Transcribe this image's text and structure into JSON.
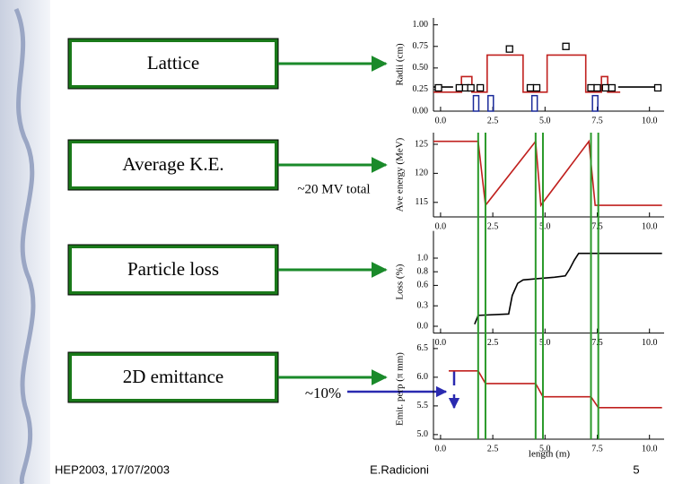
{
  "boxes": [
    "Lattice",
    "Average K.E.",
    "Particle loss",
    "2D emittance"
  ],
  "annotations": {
    "energy": "~20 MV total",
    "emittance": "~10%"
  },
  "footer": {
    "left": "HEP2003, 17/07/2003",
    "center": "E.Radicioni",
    "page": "5"
  },
  "xlabel": "length (m)",
  "marker_lines": [
    1.8,
    2.15,
    4.55,
    4.9,
    7.2,
    7.55
  ],
  "chart_data": [
    {
      "type": "line",
      "ylabel": "Radii (cm)",
      "xlim": [
        -0.34,
        10.7
      ],
      "ylim": [
        0,
        1.08
      ],
      "xticks": [
        {
          "value": 0,
          "label": "0.0"
        },
        2.5,
        {
          "value": 5,
          "label": "5.0"
        },
        7.5,
        {
          "value": 10,
          "label": "10.0"
        }
      ],
      "yticks": [
        {
          "value": 0,
          "label": "0.00"
        },
        0.25,
        {
          "value": 0.5,
          "label": "0.50"
        },
        0.75,
        {
          "value": 1,
          "label": "1.00"
        }
      ],
      "series": [
        {
          "color": "#c0201e",
          "x": [
            -0.34,
            1.0,
            1.0,
            1.5,
            1.5,
            2.23,
            2.23,
            3.95,
            3.95,
            5.1,
            5.1,
            6.95,
            6.95,
            7.7,
            7.7,
            8.0,
            8.0,
            8.6
          ],
          "values": [
            0.22,
            0.22,
            0.4,
            0.4,
            0.22,
            0.22,
            0.65,
            0.65,
            0.22,
            0.22,
            0.65,
            0.65,
            0.22,
            0.22,
            0.4,
            0.4,
            0.22,
            0.22
          ]
        },
        {
          "type": "bar",
          "color": "#1a2a9a",
          "x": [
            1.7,
            2.4,
            4.5,
            7.4
          ],
          "values": [
            0.18,
            0.18,
            0.18,
            0.18
          ]
        },
        {
          "color": "#000000",
          "x": [
            -0.34,
            0.6,
            null,
            8.5,
            10.4
          ],
          "values": [
            0.28,
            0.28,
            null,
            0.28,
            0.28
          ]
        },
        {
          "type": "scatter",
          "color": "#000000",
          "x": [
            -0.1,
            0.9,
            1.2,
            1.45,
            1.9,
            3.3,
            4.3,
            4.6,
            6.0,
            7.2,
            7.5,
            7.9,
            8.2,
            10.4
          ],
          "values": [
            0.27,
            0.27,
            0.27,
            0.27,
            0.27,
            0.72,
            0.27,
            0.27,
            0.75,
            0.27,
            0.27,
            0.27,
            0.27,
            0.27
          ]
        }
      ]
    },
    {
      "type": "line",
      "ylabel": "Ave energy (MeV)",
      "xlim": [
        -0.34,
        10.7
      ],
      "ylim": [
        112.5,
        127
      ],
      "xticks": [
        {
          "value": 0,
          "label": "0.0"
        },
        2.5,
        {
          "value": 5,
          "label": "5.0"
        },
        7.5,
        {
          "value": 10,
          "label": "10.0"
        }
      ],
      "yticks": [
        115,
        120,
        125
      ],
      "series": [
        {
          "color": "#c0201e",
          "x": [
            -0.34,
            1.8,
            2.15,
            4.55,
            4.8,
            7.1,
            7.4,
            10.6
          ],
          "values": [
            125.5,
            125.5,
            114.5,
            125.5,
            114.5,
            125.5,
            114.5,
            114.5
          ]
        }
      ]
    },
    {
      "type": "line",
      "ylabel": "Loss (%)",
      "xlim": [
        -0.34,
        10.7
      ],
      "ylim": [
        -0.1,
        1.4
      ],
      "xticks": [
        {
          "value": 0,
          "label": "0.0"
        },
        2.5,
        {
          "value": 5,
          "label": "5.0"
        },
        7.5,
        {
          "value": 10,
          "label": "10.0"
        }
      ],
      "yticks": [
        {
          "value": 0,
          "label": "0.0"
        },
        0.3,
        0.6,
        0.8,
        {
          "value": 1,
          "label": "1.0"
        }
      ],
      "series": [
        {
          "color": "#000000",
          "x": [
            1.63,
            1.8,
            3.26,
            3.43,
            3.69,
            3.95,
            4.68,
            5.45,
            5.97,
            6.18,
            6.4,
            6.61,
            10.6
          ],
          "values": [
            0.03,
            0.16,
            0.18,
            0.45,
            0.63,
            0.68,
            0.7,
            0.72,
            0.74,
            0.84,
            0.97,
            1.07,
            1.07
          ]
        }
      ]
    },
    {
      "type": "line",
      "ylabel": "Emit. perp (π mm)",
      "xlim": [
        -0.34,
        10.7
      ],
      "ylim": [
        4.92,
        6.67
      ],
      "xticks": [
        {
          "value": 0,
          "label": "0.0"
        },
        2.5,
        {
          "value": 5,
          "label": "5.0"
        },
        7.5,
        {
          "value": 10,
          "label": "10.0"
        }
      ],
      "yticks": [
        {
          "value": 5,
          "label": "5.0"
        },
        5.5,
        {
          "value": 6,
          "label": "6.0"
        },
        6.5
      ],
      "series": [
        {
          "color": "#c0201e",
          "x": [
            0.39,
            1.8,
            2.15,
            4.55,
            4.9,
            7.2,
            7.55,
            10.6
          ],
          "values": [
            6.11,
            6.11,
            5.89,
            5.89,
            5.66,
            5.66,
            5.47,
            5.47
          ]
        }
      ]
    }
  ]
}
